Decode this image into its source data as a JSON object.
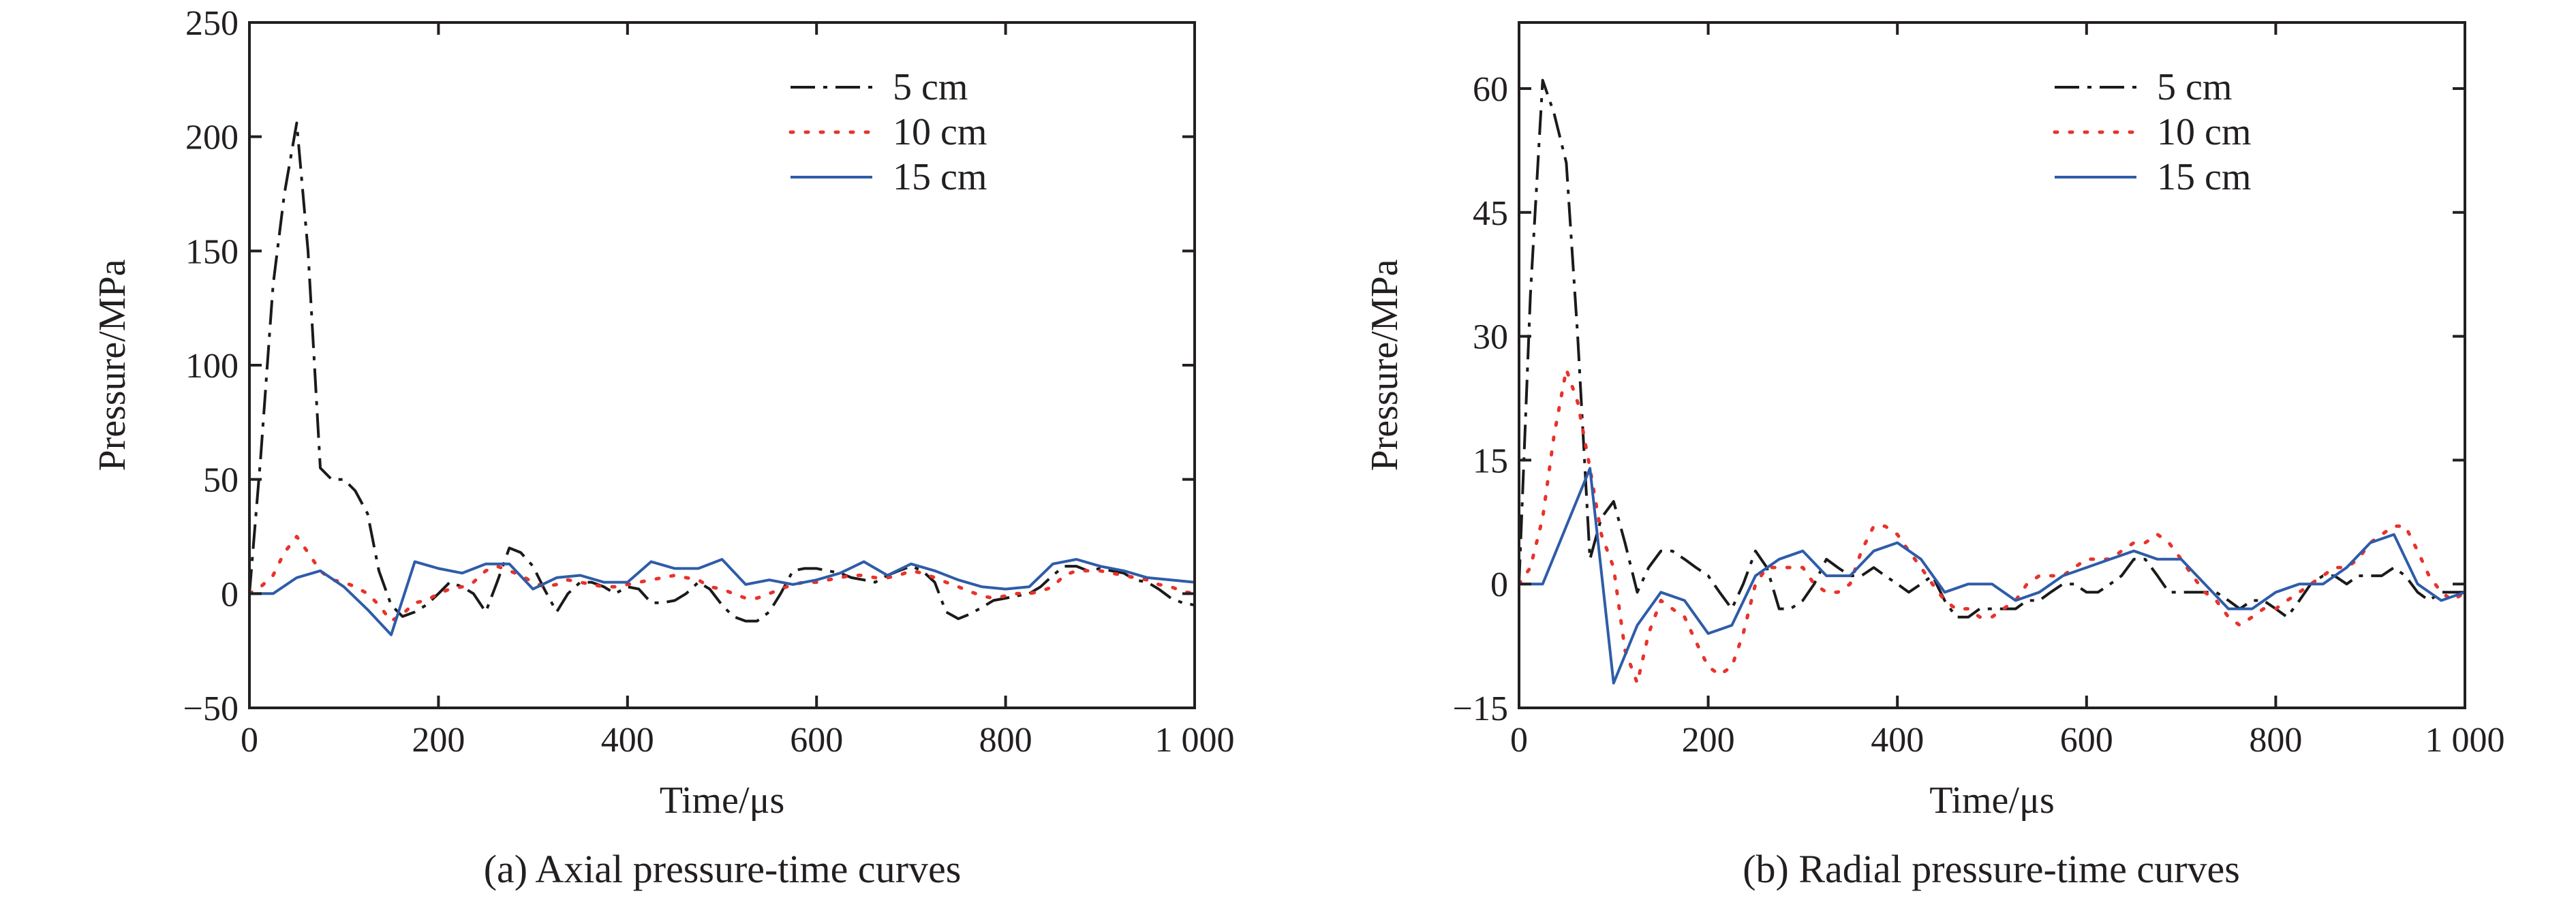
{
  "figure": {
    "colors": {
      "5 cm": "#1a1a1a",
      "10 cm": "#e8322b",
      "15 cm": "#2e5ca8",
      "axis": "#231f20"
    }
  },
  "chart_data": [
    {
      "id": "a",
      "type": "line",
      "caption": "(a) Axial pressure-time curves",
      "xlabel": "Time/μs",
      "ylabel": "Pressure/MPa",
      "xlim": [
        0,
        1000
      ],
      "ylim": [
        -50,
        250
      ],
      "xticks": [
        0,
        200,
        400,
        600,
        800,
        1000
      ],
      "xtick_labels": [
        "0",
        "200",
        "400",
        "600",
        "800",
        "1 000"
      ],
      "yticks": [
        -50,
        0,
        50,
        100,
        150,
        200,
        250
      ],
      "ytick_labels": [
        "−50",
        "0",
        "50",
        "100",
        "150",
        "200",
        "250"
      ],
      "grid": false,
      "legend_position": "top-right",
      "series": [
        {
          "name": "5 cm",
          "style": "dashdot",
          "x": [
            0,
            12,
            25,
            37,
            50,
            62,
            75,
            87,
            100,
            112,
            125,
            137,
            150,
            162,
            175,
            187,
            200,
            212,
            225,
            237,
            250,
            262,
            275,
            287,
            300,
            312,
            325,
            337,
            350,
            362,
            375,
            387,
            400,
            412,
            425,
            437,
            450,
            462,
            475,
            487,
            500,
            512,
            525,
            537,
            550,
            562,
            575,
            587,
            600,
            612,
            625,
            637,
            650,
            662,
            675,
            687,
            700,
            712,
            725,
            737,
            750,
            762,
            775,
            787,
            800,
            812,
            825,
            837,
            850,
            862,
            875,
            887,
            900,
            912,
            925,
            937,
            950,
            962,
            975,
            987,
            1000
          ],
          "y": [
            0,
            60,
            135,
            175,
            206,
            150,
            55,
            50,
            50,
            45,
            35,
            10,
            -5,
            -10,
            -8,
            -5,
            0,
            5,
            3,
            0,
            -8,
            5,
            20,
            18,
            12,
            2,
            -8,
            0,
            5,
            5,
            3,
            0,
            3,
            2,
            -4,
            -4,
            -3,
            0,
            5,
            2,
            -5,
            -10,
            -12,
            -12,
            -8,
            0,
            10,
            11,
            11,
            10,
            9,
            7,
            6,
            5,
            8,
            10,
            12,
            10,
            5,
            -8,
            -11,
            -9,
            -6,
            -3,
            -2,
            -1,
            0,
            3,
            8,
            12,
            12,
            10,
            11,
            10,
            9,
            6,
            5,
            2,
            -2,
            -4,
            -5
          ]
        },
        {
          "name": "10 cm",
          "style": "dotted",
          "x": [
            0,
            12,
            25,
            37,
            50,
            62,
            75,
            87,
            100,
            112,
            125,
            137,
            150,
            162,
            175,
            187,
            200,
            212,
            225,
            237,
            250,
            262,
            275,
            287,
            300,
            312,
            325,
            337,
            350,
            362,
            375,
            387,
            400,
            412,
            425,
            437,
            450,
            462,
            475,
            487,
            500,
            512,
            525,
            537,
            550,
            562,
            575,
            587,
            600,
            612,
            625,
            637,
            650,
            662,
            675,
            687,
            700,
            712,
            725,
            737,
            750,
            762,
            775,
            787,
            800,
            812,
            825,
            837,
            850,
            862,
            875,
            887,
            900,
            912,
            925,
            937,
            950,
            962,
            975,
            987,
            1000
          ],
          "y": [
            0,
            3,
            8,
            18,
            25,
            18,
            10,
            6,
            5,
            3,
            0,
            -5,
            -12,
            -9,
            -4,
            -3,
            0,
            2,
            3,
            5,
            10,
            12,
            10,
            8,
            5,
            3,
            4,
            6,
            5,
            4,
            3,
            3,
            4,
            5,
            6,
            7,
            8,
            7,
            6,
            3,
            2,
            0,
            -2,
            -2,
            0,
            2,
            4,
            5,
            5,
            6,
            7,
            8,
            8,
            7,
            7,
            8,
            10,
            9,
            7,
            5,
            3,
            1,
            -1,
            -2,
            -1,
            0,
            0,
            1,
            3,
            8,
            10,
            10,
            10,
            9,
            8,
            7,
            6,
            4,
            3,
            1,
            0
          ]
        },
        {
          "name": "15 cm",
          "style": "solid",
          "x": [
            0,
            25,
            50,
            75,
            100,
            125,
            150,
            175,
            200,
            225,
            250,
            275,
            300,
            325,
            350,
            375,
            400,
            425,
            450,
            475,
            500,
            525,
            550,
            575,
            600,
            625,
            650,
            675,
            700,
            725,
            750,
            775,
            800,
            825,
            850,
            875,
            900,
            925,
            950,
            975,
            1000
          ],
          "y": [
            0,
            0,
            7,
            10,
            3,
            -7,
            -18,
            14,
            11,
            9,
            13,
            13,
            2,
            7,
            8,
            5,
            5,
            14,
            11,
            11,
            15,
            4,
            6,
            4,
            6,
            9,
            14,
            8,
            13,
            10,
            6,
            3,
            2,
            3,
            13,
            15,
            12,
            10,
            7,
            6,
            5
          ]
        }
      ]
    },
    {
      "id": "b",
      "type": "line",
      "caption": "(b) Radial pressure-time curves",
      "xlabel": "Time/μs",
      "ylabel": "Pressure/MPa",
      "xlim": [
        0,
        1000
      ],
      "ylim": [
        -15,
        68
      ],
      "xticks": [
        0,
        200,
        400,
        600,
        800,
        1000
      ],
      "xtick_labels": [
        "0",
        "200",
        "400",
        "600",
        "800",
        "1 000"
      ],
      "yticks": [
        -15,
        0,
        15,
        30,
        45,
        60
      ],
      "ytick_labels": [
        "−15",
        "0",
        "15",
        "30",
        "45",
        "60"
      ],
      "grid": false,
      "legend_position": "top-right",
      "series": [
        {
          "name": "5 cm",
          "style": "dashdot",
          "x": [
            0,
            12,
            25,
            37,
            50,
            62,
            75,
            87,
            100,
            112,
            125,
            137,
            150,
            162,
            175,
            187,
            200,
            212,
            225,
            237,
            250,
            262,
            275,
            287,
            300,
            312,
            325,
            337,
            350,
            362,
            375,
            387,
            400,
            412,
            425,
            437,
            450,
            462,
            475,
            487,
            500,
            512,
            525,
            537,
            550,
            562,
            575,
            587,
            600,
            612,
            625,
            637,
            650,
            662,
            675,
            687,
            700,
            712,
            725,
            737,
            750,
            762,
            775,
            787,
            800,
            812,
            825,
            837,
            850,
            862,
            875,
            887,
            900,
            912,
            925,
            937,
            950,
            962,
            975,
            987,
            1000
          ],
          "y": [
            0,
            35,
            61,
            57,
            51,
            30,
            3,
            8,
            10,
            5,
            -1,
            2,
            4,
            4,
            3,
            2,
            1,
            -1,
            -3,
            0,
            4,
            2,
            -3,
            -3,
            -2,
            0,
            3,
            2,
            1,
            1,
            2,
            1,
            0,
            -1,
            0,
            1,
            -2,
            -4,
            -4,
            -3,
            -3,
            -3,
            -3,
            -2,
            -2,
            -1,
            0,
            0,
            -1,
            -1,
            0,
            1,
            3,
            3,
            1,
            -1,
            -1,
            -1,
            -1,
            -1,
            -2,
            -3,
            -2,
            -2,
            -3,
            -4,
            -2,
            0,
            1,
            1,
            0,
            1,
            1,
            1,
            2,
            1,
            -1,
            -2,
            -1,
            -1,
            -1
          ]
        },
        {
          "name": "10 cm",
          "style": "dotted",
          "x": [
            0,
            12,
            25,
            37,
            50,
            62,
            75,
            87,
            100,
            112,
            125,
            137,
            150,
            162,
            175,
            187,
            200,
            212,
            225,
            237,
            250,
            262,
            275,
            287,
            300,
            312,
            325,
            337,
            350,
            362,
            375,
            387,
            400,
            412,
            425,
            437,
            450,
            462,
            475,
            487,
            500,
            512,
            525,
            537,
            550,
            562,
            575,
            587,
            600,
            612,
            625,
            637,
            650,
            662,
            675,
            687,
            700,
            712,
            725,
            737,
            750,
            762,
            775,
            787,
            800,
            812,
            825,
            837,
            850,
            862,
            875,
            887,
            900,
            912,
            925,
            937,
            950,
            962,
            975,
            987,
            1000
          ],
          "y": [
            0,
            2,
            8,
            18,
            26,
            22,
            14,
            6,
            2,
            -8,
            -12,
            -6,
            -2,
            -3,
            -4,
            -7,
            -10,
            -11,
            -10,
            -6,
            0,
            2,
            2,
            2,
            2,
            0,
            -1,
            -1,
            0,
            4,
            7,
            7,
            6,
            4,
            2,
            0,
            -2,
            -3,
            -3,
            -4,
            -4,
            -3,
            -2,
            0,
            1,
            1,
            1,
            2,
            3,
            3,
            3,
            4,
            5,
            5,
            6,
            5,
            3,
            1,
            -1,
            -2,
            -4,
            -5,
            -4,
            -3,
            -3,
            -2,
            -1,
            0,
            1,
            2,
            2,
            3,
            5,
            6,
            7,
            7,
            4,
            1,
            -1,
            -2,
            -1
          ]
        },
        {
          "name": "15 cm",
          "style": "solid",
          "x": [
            0,
            25,
            50,
            75,
            100,
            125,
            150,
            175,
            200,
            225,
            250,
            275,
            300,
            325,
            350,
            375,
            400,
            425,
            450,
            475,
            500,
            525,
            550,
            575,
            600,
            625,
            650,
            675,
            700,
            725,
            750,
            775,
            800,
            825,
            850,
            875,
            900,
            925,
            950,
            975,
            1000
          ],
          "y": [
            0,
            0,
            7,
            14,
            -12,
            -5,
            -1,
            -2,
            -6,
            -5,
            1,
            3,
            4,
            1,
            1,
            4,
            5,
            3,
            -1,
            0,
            0,
            -2,
            -1,
            1,
            2,
            3,
            4,
            3,
            3,
            0,
            -3,
            -3,
            -1,
            0,
            0,
            2,
            5,
            6,
            0,
            -2,
            -1
          ]
        }
      ]
    }
  ]
}
